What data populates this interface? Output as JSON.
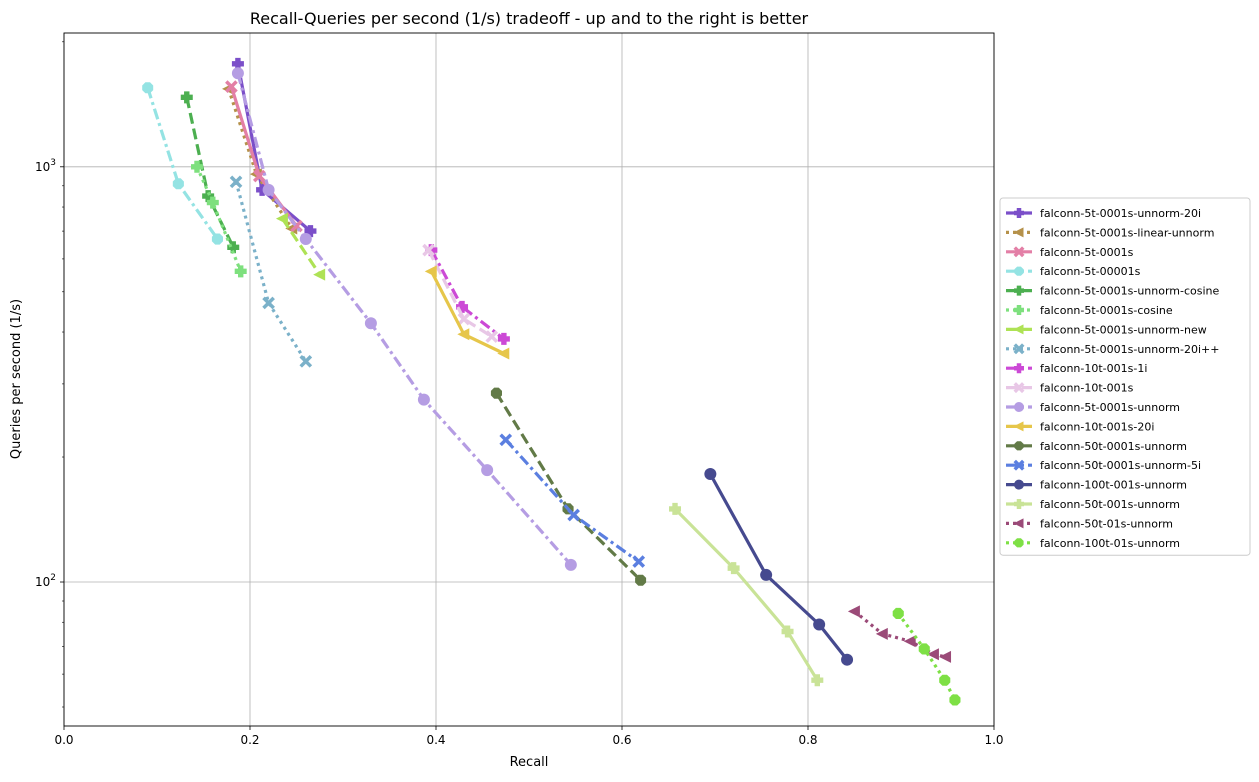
{
  "chart_data": {
    "type": "line",
    "title": "Recall-Queries per second (1/s) tradeoff - up and to the right is better",
    "xlabel": "Recall",
    "ylabel": "Queries per second (1/s)",
    "xlim": [
      0.0,
      1.0
    ],
    "ylim": [
      45,
      2100
    ],
    "y_scale": "log",
    "grid": true,
    "legend_position": "right",
    "x_ticks": [
      "0.0",
      "0.2",
      "0.4",
      "0.6",
      "0.8",
      "1.0"
    ],
    "y_ticks": [
      {
        "value": 100,
        "base": "10",
        "exp": "2"
      },
      {
        "value": 1000,
        "base": "10",
        "exp": "3"
      }
    ],
    "series": [
      {
        "name": "falconn-5t-0001s-unnorm-20i",
        "color": "#7b4fc9",
        "dash": "solid",
        "marker": "plus",
        "x": [
          0.187,
          0.213,
          0.265
        ],
        "y": [
          1770,
          880,
          700
        ]
      },
      {
        "name": "falconn-5t-0001s-linear-unnorm",
        "color": "#b5914a",
        "dash": "dot",
        "marker": "triangle-left",
        "x": [
          0.177,
          0.207,
          0.245
        ],
        "y": [
          1540,
          960,
          710
        ]
      },
      {
        "name": "falconn-5t-0001s",
        "color": "#e37fa6",
        "dash": "solid",
        "marker": "x",
        "x": [
          0.18,
          0.21,
          0.25
        ],
        "y": [
          1560,
          950,
          720
        ]
      },
      {
        "name": "falconn-5t-00001s",
        "color": "#94e3e3",
        "dash": "dashdot",
        "marker": "octagon",
        "x": [
          0.09,
          0.123,
          0.165
        ],
        "y": [
          1550,
          910,
          670
        ]
      },
      {
        "name": "falconn-5t-0001s-unnorm-cosine",
        "color": "#4caf50",
        "dash": "dashed",
        "marker": "plus",
        "x": [
          0.132,
          0.155,
          0.182
        ],
        "y": [
          1470,
          850,
          640
        ]
      },
      {
        "name": "falconn-5t-0001s-cosine",
        "color": "#7ee07e",
        "dash": "dot",
        "marker": "plus",
        "x": [
          0.143,
          0.16,
          0.19
        ],
        "y": [
          1000,
          820,
          560
        ]
      },
      {
        "name": "falconn-5t-0001s-unnorm-new",
        "color": "#aee255",
        "dash": "dashed",
        "marker": "triangle-left",
        "x": [
          0.235,
          0.275
        ],
        "y": [
          750,
          550
        ]
      },
      {
        "name": "falconn-5t-0001s-unnorm-20i++",
        "color": "#7bb1c9",
        "dash": "dot",
        "marker": "x",
        "x": [
          0.185,
          0.22,
          0.26
        ],
        "y": [
          920,
          470,
          340
        ]
      },
      {
        "name": "falconn-10t-001s-1i",
        "color": "#cc49d6",
        "dash": "dashdot",
        "marker": "plus",
        "x": [
          0.395,
          0.428,
          0.473
        ],
        "y": [
          630,
          460,
          385
        ]
      },
      {
        "name": "falconn-10t-001s",
        "color": "#e8c7e6",
        "dash": "dashed",
        "marker": "x",
        "x": [
          0.392,
          0.43,
          0.46
        ],
        "y": [
          630,
          430,
          390
        ]
      },
      {
        "name": "falconn-5t-0001s-unnorm",
        "color": "#b59de3",
        "dash": "dashdot",
        "marker": "circle",
        "x": [
          0.187,
          0.22,
          0.26,
          0.33,
          0.387,
          0.455,
          0.545
        ],
        "y": [
          1680,
          880,
          670,
          420,
          275,
          186,
          110
        ]
      },
      {
        "name": "falconn-10t-001s-20i",
        "color": "#e6c64a",
        "dash": "solid",
        "marker": "triangle-left",
        "x": [
          0.395,
          0.43,
          0.473
        ],
        "y": [
          560,
          395,
          355
        ]
      },
      {
        "name": "falconn-50t-0001s-unnorm",
        "color": "#627a47",
        "dash": "dashed",
        "marker": "octagon",
        "x": [
          0.465,
          0.542,
          0.62
        ],
        "y": [
          285,
          150,
          101
        ]
      },
      {
        "name": "falconn-50t-0001s-unnorm-5i",
        "color": "#5b7fe0",
        "dash": "dashdot",
        "marker": "x",
        "x": [
          0.475,
          0.548,
          0.618
        ],
        "y": [
          220,
          145,
          112
        ]
      },
      {
        "name": "falconn-100t-001s-unnorm",
        "color": "#464a8f",
        "dash": "solid",
        "marker": "circle",
        "x": [
          0.695,
          0.755,
          0.812,
          0.842
        ],
        "y": [
          182,
          104,
          79,
          65
        ]
      },
      {
        "name": "falconn-50t-001s-unnorm",
        "color": "#c9e397",
        "dash": "solid",
        "marker": "plus",
        "x": [
          0.657,
          0.72,
          0.778,
          0.81
        ],
        "y": [
          150,
          108,
          76,
          58
        ]
      },
      {
        "name": "falconn-50t-01s-unnorm",
        "color": "#9b4a78",
        "dash": "dot",
        "marker": "triangle-left",
        "x": [
          0.85,
          0.88,
          0.91,
          0.935,
          0.948
        ],
        "y": [
          85,
          75,
          72,
          67,
          66
        ]
      },
      {
        "name": "falconn-100t-01s-unnorm",
        "color": "#7ee045",
        "dash": "dot",
        "marker": "octagon",
        "x": [
          0.897,
          0.925,
          0.947,
          0.958
        ],
        "y": [
          84,
          69,
          58,
          52
        ]
      }
    ]
  }
}
